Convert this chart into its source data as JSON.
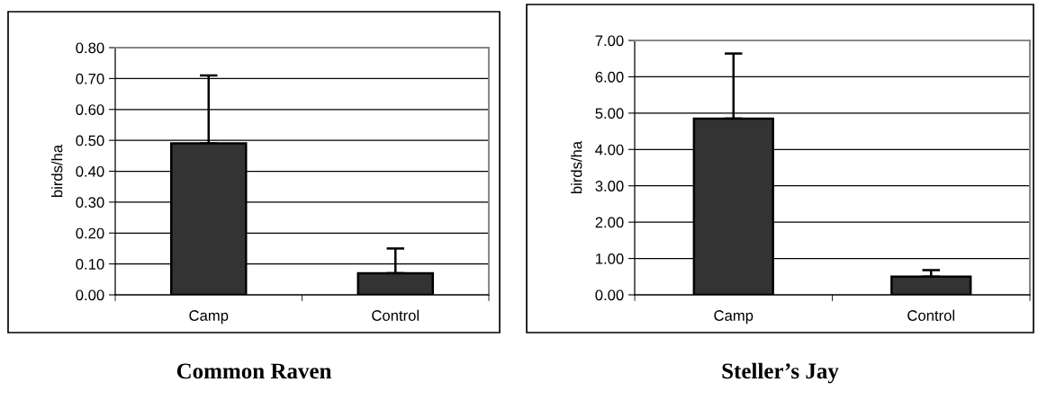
{
  "chart_data": [
    {
      "type": "bar",
      "title": "Common Raven",
      "ylabel": "birds/ha",
      "categories": [
        "Camp",
        "Control"
      ],
      "values": [
        0.49,
        0.07
      ],
      "color": "#333333",
      "errors": [
        [
          0.49,
          0.71
        ],
        [
          0.07,
          0.15
        ]
      ],
      "ylim": [
        0,
        0.8
      ],
      "yticks": [
        {
          "value": 0,
          "label": "0.00"
        },
        {
          "value": 0.1,
          "label": "0.10"
        },
        {
          "value": 0.2,
          "label": "0.20"
        },
        {
          "value": 0.3,
          "label": "0.30"
        },
        {
          "value": 0.4,
          "label": "0.40"
        },
        {
          "value": 0.5,
          "label": "0.50"
        },
        {
          "value": 0.6,
          "label": "0.60"
        },
        {
          "value": 0.7,
          "label": "0.70"
        },
        {
          "value": 0.8,
          "label": "0.80"
        }
      ],
      "grid": "y"
    },
    {
      "type": "bar",
      "title": "Steller’s Jay",
      "ylabel": "birds/ha",
      "categories": [
        "Camp",
        "Control"
      ],
      "values": [
        4.85,
        0.5
      ],
      "color": "#333333",
      "errors": [
        [
          4.85,
          6.64
        ],
        [
          0.5,
          0.68
        ]
      ],
      "ylim": [
        0,
        7
      ],
      "yticks": [
        {
          "value": 0,
          "label": "0.00"
        },
        {
          "value": 1,
          "label": "1.00"
        },
        {
          "value": 2,
          "label": "2.00"
        },
        {
          "value": 3,
          "label": "3.00"
        },
        {
          "value": 4,
          "label": "4.00"
        },
        {
          "value": 5,
          "label": "5.00"
        },
        {
          "value": 6,
          "label": "6.00"
        },
        {
          "value": 7,
          "label": "7.00"
        }
      ],
      "grid": "y"
    }
  ]
}
